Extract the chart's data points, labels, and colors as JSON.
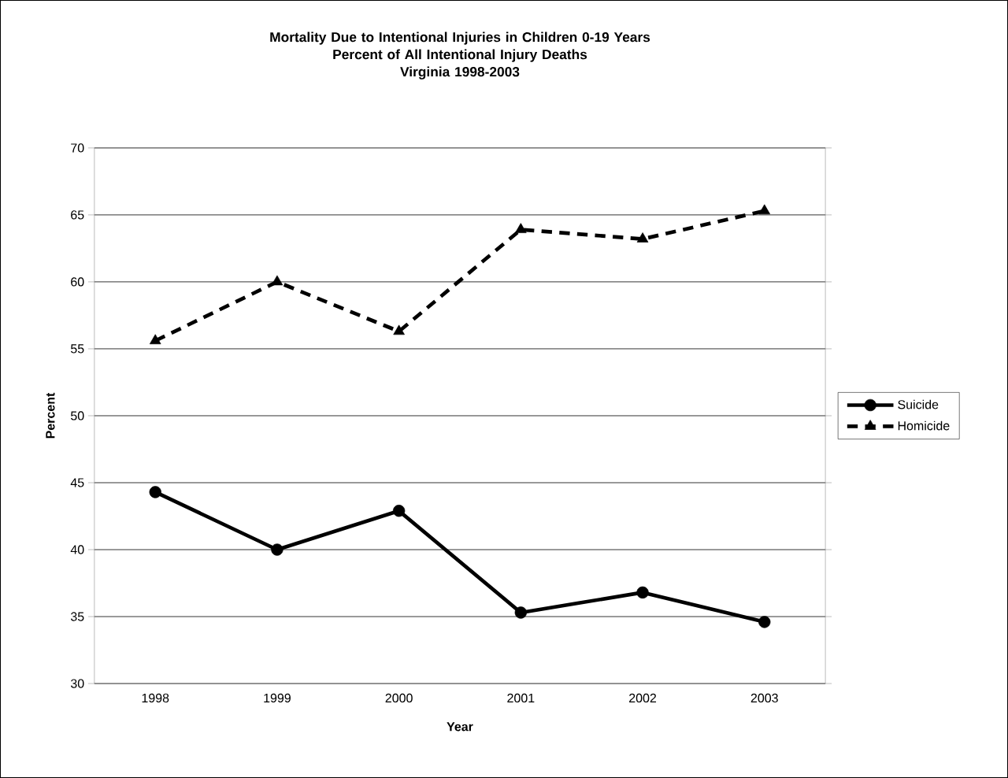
{
  "chart_data": {
    "type": "line",
    "title": "Mortality Due to Intentional Injuries in Children 0-19 Years",
    "subtitle": "Percent of All Intentional Injury Deaths\nVirginia 1998-2003",
    "xlabel": "Year",
    "ylabel": "Percent",
    "categories": [
      "1998",
      "1999",
      "2000",
      "2001",
      "2002",
      "2003"
    ],
    "series": [
      {
        "name": "Suicide",
        "color": "#000000",
        "marker": "circle",
        "line_style": "solid",
        "values": [
          44.3,
          40.0,
          42.9,
          35.3,
          36.8,
          34.6
        ]
      },
      {
        "name": "Homicide",
        "color": "#000000",
        "marker": "triangle",
        "line_style": "dashed",
        "values": [
          55.6,
          60.0,
          56.3,
          63.9,
          63.2,
          65.3
        ]
      }
    ],
    "ylim": [
      30,
      70
    ],
    "yticks": [
      30,
      35,
      40,
      45,
      50,
      55,
      60,
      65,
      70
    ],
    "grid": "y",
    "legend": "right"
  }
}
